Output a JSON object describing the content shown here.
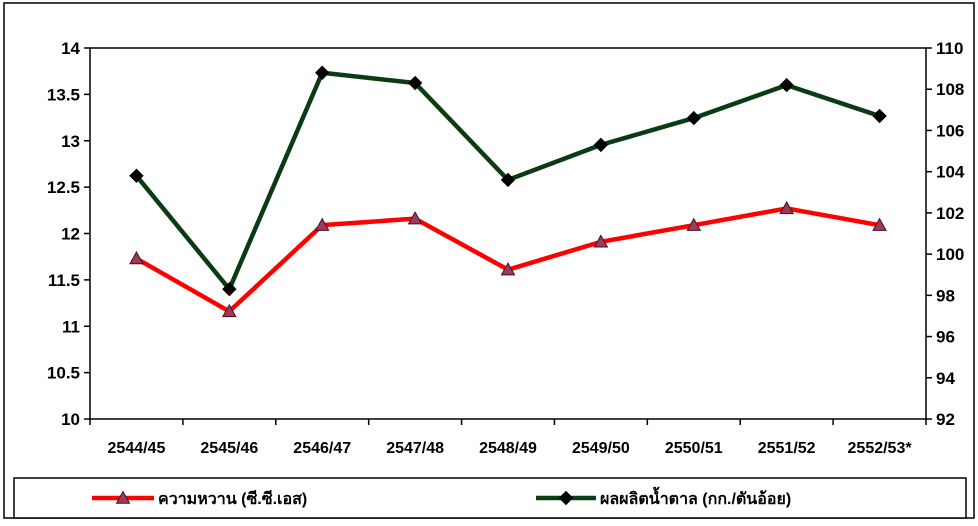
{
  "chart_data": {
    "type": "line",
    "categories": [
      "2544/45",
      "2545/46",
      "2546/47",
      "2547/48",
      "2548/49",
      "2549/50",
      "2550/51",
      "2551/52",
      "2552/53*"
    ],
    "series": [
      {
        "name": "ความหวาน (ซี.ซี.เอส)",
        "axis": "left",
        "color": "#ff0000",
        "marker": "triangle",
        "marker_color": "#9b3b5a",
        "values": [
          11.73,
          11.16,
          12.09,
          12.16,
          11.61,
          11.91,
          12.09,
          12.27,
          12.09
        ]
      },
      {
        "name": "ผลผลิตน้ำตาล (กก./ตันอ้อย)",
        "axis": "right",
        "color": "#0b3b12",
        "marker": "diamond",
        "marker_color": "#000000",
        "values": [
          103.8,
          98.3,
          108.8,
          108.3,
          103.6,
          105.3,
          106.6,
          108.2,
          106.7
        ]
      }
    ],
    "y_left": {
      "min": 10,
      "max": 14,
      "ticks": [
        "10",
        "10.5",
        "11",
        "11.5",
        "12",
        "12.5",
        "13",
        "13.5",
        "14"
      ]
    },
    "y_right": {
      "min": 92,
      "max": 110,
      "ticks": [
        "92",
        "94",
        "96",
        "98",
        "100",
        "102",
        "104",
        "106",
        "108",
        "110"
      ]
    },
    "grid": false,
    "legend_position": "bottom"
  }
}
